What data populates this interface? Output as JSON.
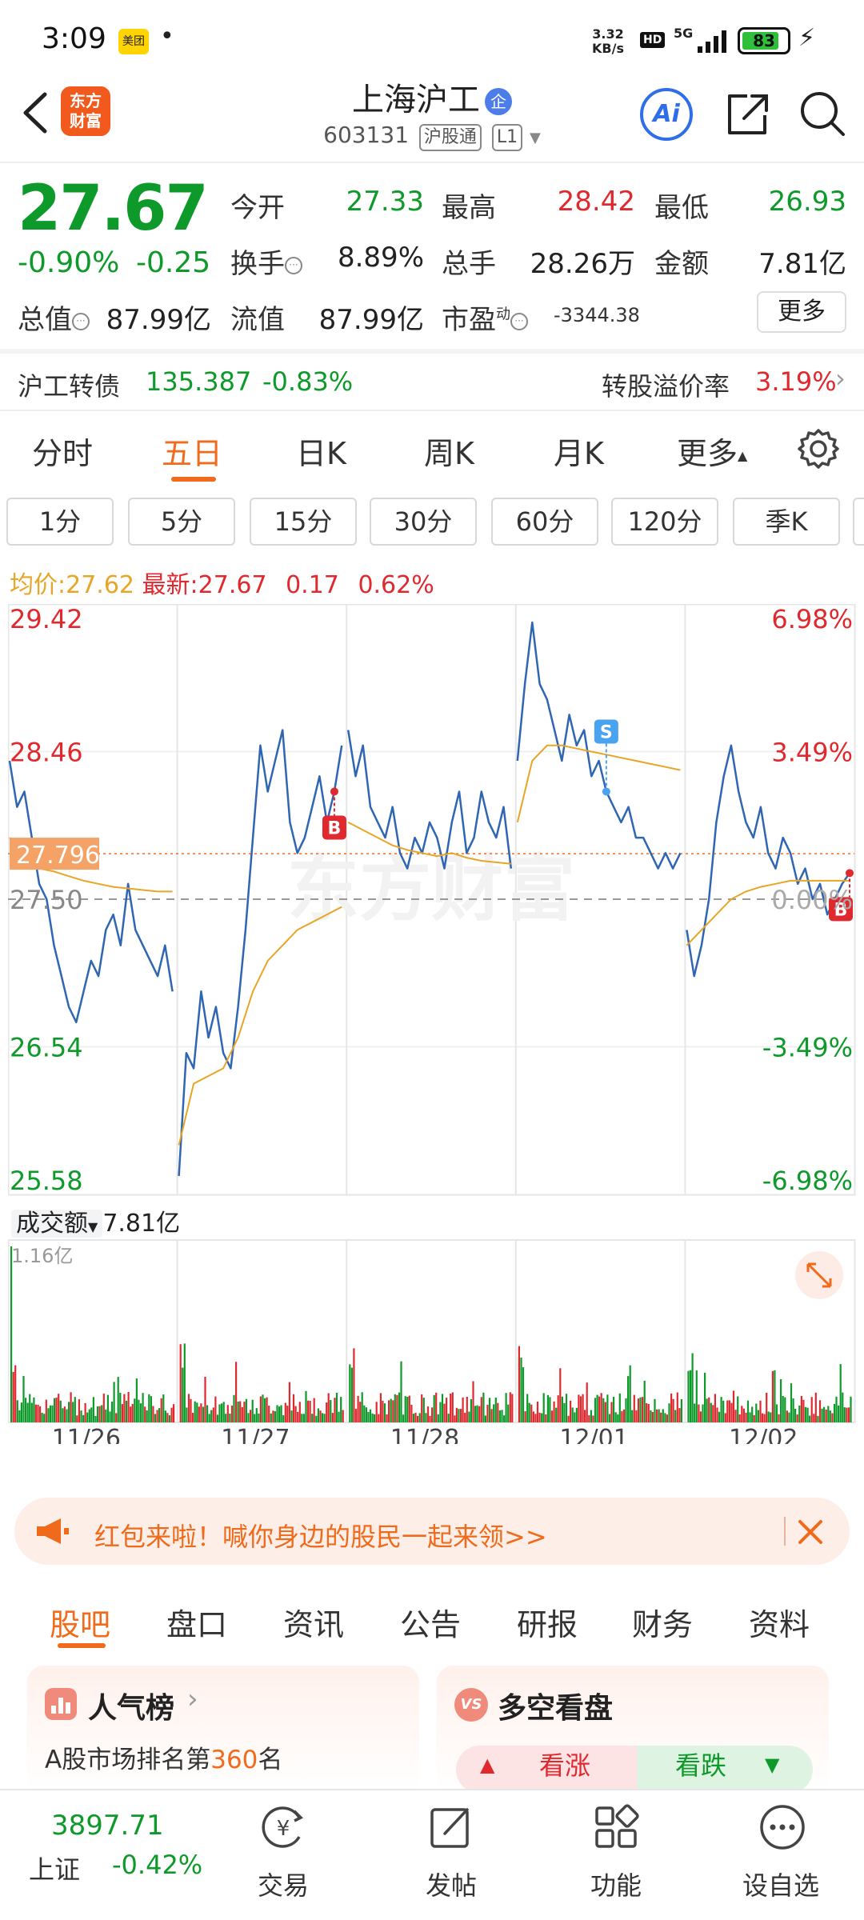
{
  "status_bar": {
    "time": "3:09",
    "app_badge": "美团",
    "dot": "•",
    "speed_value": "3.32",
    "speed_unit": "KB/s",
    "hd": "HD",
    "network": "5G",
    "battery": "83",
    "battery_level": 0.83
  },
  "header": {
    "logo_line1": "东方",
    "logo_line2": "财富",
    "stock_name": "上海沪工",
    "badge": "企",
    "code": "603131",
    "tag1": "沪股通",
    "tag2": "L1",
    "ai_label": "Ai"
  },
  "quote": {
    "price": "27.67",
    "change_pct": "-0.90%",
    "change": "-0.25",
    "open_label": "今开",
    "open": "27.33",
    "high_label": "最高",
    "high": "28.42",
    "low_label": "最低",
    "low": "26.93",
    "turnover_label": "换手",
    "turnover": "8.89%",
    "volume_label": "总手",
    "volume": "28.26万",
    "amount_label": "金额",
    "amount": "7.81亿",
    "mktcap_label": "总值",
    "mktcap": "87.99亿",
    "float_label": "流值",
    "float": "87.99亿",
    "pe_label": "市盈",
    "pe_sup": "动",
    "pe": "-3344.38",
    "more": "更多"
  },
  "bond": {
    "name": "沪工转债",
    "price": "135.387",
    "change": "-0.83%",
    "premium_label": "转股溢价率",
    "premium": "3.19%"
  },
  "tabs": [
    "分时",
    "五日",
    "日K",
    "周K",
    "月K",
    "更多"
  ],
  "period_tabs": [
    "1分",
    "5分",
    "15分",
    "30分",
    "60分",
    "120分",
    "季K"
  ],
  "avg": {
    "avg_label": "均价:",
    "avg_value": "27.62",
    "latest_label": "最新:",
    "latest_value": "27.67",
    "delta": "0.17",
    "delta_pct": "0.62%"
  },
  "chart_data": {
    "type": "line",
    "y_ticks_left": [
      "29.42",
      "28.46",
      "27.50",
      "26.54",
      "25.58"
    ],
    "y_ticks_right": [
      "6.98%",
      "3.49%",
      "0.00%",
      "-3.49%",
      "-6.98%"
    ],
    "ylim": [
      25.58,
      29.42
    ],
    "base_price": 27.5,
    "current_marker": "27.796",
    "watermark": "东方财富",
    "days": [
      "11/26",
      "11/27",
      "11/28",
      "12/01",
      "12/02"
    ],
    "series": [
      {
        "values": [
          [
            28.4,
            28.1,
            28.2,
            27.9,
            27.6,
            27.5,
            27.2,
            27.0,
            26.8,
            26.7,
            26.9,
            27.1,
            27.0,
            27.3,
            27.4,
            27.2,
            27.6,
            27.3,
            27.2,
            27.1,
            27.0,
            27.2,
            26.9
          ],
          [
            25.7,
            26.5,
            26.4,
            26.9,
            26.6,
            26.8,
            26.5,
            26.4,
            26.8,
            27.3,
            27.9,
            28.5,
            28.2,
            28.4,
            28.6,
            28.0,
            27.8,
            27.9,
            28.1,
            28.3,
            28.0,
            28.2,
            28.5
          ],
          [
            28.6,
            28.3,
            28.5,
            28.1,
            28.0,
            27.9,
            28.1,
            27.8,
            27.7,
            27.9,
            27.8,
            28.0,
            27.9,
            27.7,
            28.0,
            28.2,
            27.8,
            27.9,
            28.2,
            28.0,
            27.9,
            28.1,
            27.7
          ],
          [
            28.4,
            28.9,
            29.3,
            28.9,
            28.8,
            28.6,
            28.4,
            28.7,
            28.5,
            28.6,
            28.3,
            28.4,
            28.2,
            28.1,
            28.0,
            28.1,
            27.9,
            27.9,
            27.8,
            27.7,
            27.8,
            27.7,
            27.8
          ],
          [
            27.3,
            27.0,
            27.2,
            27.5,
            28.0,
            28.3,
            28.5,
            28.2,
            28.0,
            27.9,
            28.1,
            27.8,
            27.7,
            27.9,
            27.8,
            27.6,
            27.7,
            27.5,
            27.6,
            27.4,
            27.5,
            27.6,
            27.67
          ]
        ]
      },
      {
        "values": [
          [
            27.9,
            27.75,
            27.7,
            27.68,
            27.65,
            27.62,
            27.6,
            27.58,
            27.57,
            27.56,
            27.55,
            27.55
          ],
          [
            25.9,
            26.3,
            26.35,
            26.4,
            26.6,
            26.9,
            27.1,
            27.2,
            27.3,
            27.35,
            27.4,
            27.45
          ],
          [
            28.0,
            27.95,
            27.9,
            27.85,
            27.82,
            27.8,
            27.78,
            27.8,
            27.77,
            27.75,
            27.74,
            27.73
          ],
          [
            28.0,
            28.4,
            28.5,
            28.5,
            28.48,
            28.46,
            28.44,
            28.42,
            28.4,
            28.38,
            28.36,
            28.34
          ],
          [
            27.2,
            27.3,
            27.4,
            27.5,
            27.55,
            27.58,
            27.6,
            27.62,
            27.62,
            27.62,
            27.62,
            27.62
          ]
        ]
      }
    ],
    "markers": [
      {
        "label": "B",
        "day": 1,
        "pos": 0.95
      },
      {
        "label": "S",
        "day": 3,
        "pos": 0.55
      },
      {
        "label": "B",
        "day": 4,
        "pos": 0.98
      }
    ],
    "colors": {
      "price": "#2f66b3",
      "avg": "#e8a526",
      "up": "#e0292f",
      "down": "#0e9a2a",
      "marker_b": "#e0292f",
      "marker_s": "#4aa3ee"
    }
  },
  "volume": {
    "label": "成交额",
    "value": "7.81亿",
    "max_label": "1.16亿"
  },
  "banner": {
    "text": "红包来啦！喊你身边的股民一起来领>>"
  },
  "bottom_tabs": [
    "股吧",
    "盘口",
    "资讯",
    "公告",
    "研报",
    "财务",
    "资料"
  ],
  "cards": {
    "popular_title": "人气榜",
    "popular_prefix": "A股市场排名第",
    "popular_rank": "360",
    "popular_suffix": "名",
    "bull_bear_title": "多空看盘",
    "bull": "看涨",
    "bear": "看跌"
  },
  "nav": {
    "index_value": "3897.71",
    "index_name": "上证",
    "index_change": "-0.42%",
    "trade": "交易",
    "post": "发帖",
    "func": "功能",
    "watch": "设自选"
  }
}
